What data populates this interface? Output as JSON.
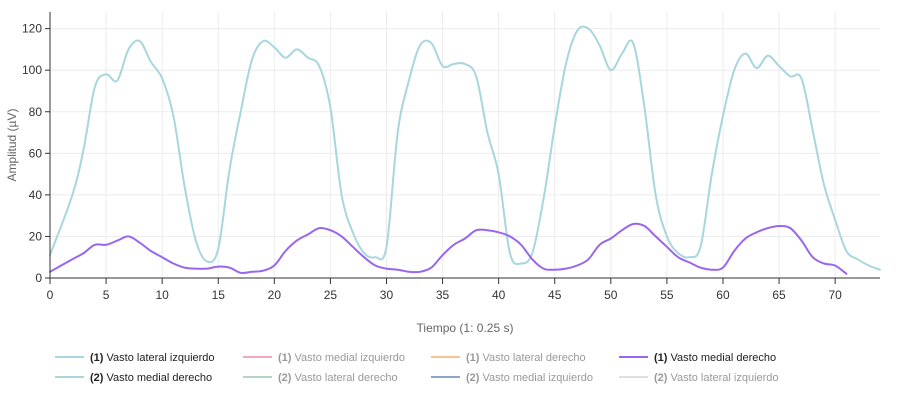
{
  "chart_data": {
    "type": "line",
    "title": "",
    "xlabel": "Tiempo (1: 0.25 s)",
    "ylabel": "Amplitud (µV)",
    "xlim": [
      0,
      74
    ],
    "ylim": [
      0,
      128
    ],
    "xticks": [
      0,
      5,
      10,
      15,
      20,
      25,
      30,
      35,
      40,
      45,
      50,
      55,
      60,
      65,
      70
    ],
    "yticks": [
      0,
      20,
      40,
      60,
      80,
      100,
      120
    ],
    "grid": true,
    "legend_position": "bottom",
    "series": [
      {
        "name": "Vasto lateral izquierdo",
        "prefix": "(1)",
        "color": "#a8d6de",
        "visible": true,
        "x": [
          0,
          2,
          3,
          4,
          5,
          6,
          7,
          8,
          9,
          10,
          11,
          12,
          13,
          14,
          15,
          16,
          17,
          18,
          19,
          20,
          21,
          22,
          23,
          24,
          25,
          26,
          27,
          28,
          29,
          30,
          31,
          32,
          33,
          34,
          35,
          36,
          37,
          38,
          39,
          40,
          41,
          42,
          43,
          44,
          45,
          46,
          47,
          48,
          49,
          50,
          51,
          52,
          53,
          54,
          55,
          56,
          57,
          58,
          59,
          60,
          61,
          62,
          63,
          64,
          65,
          66,
          67,
          68,
          69,
          70,
          71,
          72,
          73,
          74
        ],
        "y": [
          11,
          40,
          62,
          92,
          98,
          95,
          110,
          114,
          104,
          96,
          78,
          44,
          18,
          8,
          14,
          52,
          80,
          105,
          114,
          111,
          106,
          110,
          106,
          102,
          82,
          40,
          22,
          12,
          10,
          15,
          70,
          95,
          112,
          113,
          102,
          103,
          103,
          97,
          70,
          50,
          12,
          7,
          12,
          38,
          73,
          103,
          119,
          120,
          112,
          100,
          108,
          113,
          82,
          40,
          20,
          12,
          10,
          15,
          50,
          78,
          100,
          108,
          101,
          107,
          102,
          97,
          96,
          71,
          45,
          28,
          13,
          9,
          6,
          4
        ]
      },
      {
        "name": "Vasto medial izquierdo",
        "prefix": "(1)",
        "color": "#f4a7c0",
        "visible": false,
        "x": [],
        "y": []
      },
      {
        "name": "Vasto lateral derecho",
        "prefix": "(1)",
        "color": "#f7c48f",
        "visible": false,
        "x": [],
        "y": []
      },
      {
        "name": "Vasto medial derecho",
        "prefix": "(1)",
        "color": "#9966ee",
        "visible": true,
        "x": [
          0,
          1,
          2,
          3,
          4,
          5,
          6,
          7,
          8,
          9,
          10,
          11,
          12,
          13,
          14,
          15,
          16,
          17,
          18,
          19,
          20,
          21,
          22,
          23,
          24,
          25,
          26,
          27,
          28,
          29,
          30,
          31,
          32,
          33,
          34,
          35,
          36,
          37,
          38,
          39,
          40,
          41,
          42,
          43,
          44,
          45,
          46,
          47,
          48,
          49,
          50,
          51,
          52,
          53,
          54,
          55,
          56,
          57,
          58,
          59,
          60,
          61,
          62,
          63,
          64,
          65,
          66,
          67,
          68,
          69,
          70,
          71
        ],
        "y": [
          3,
          6,
          9,
          12,
          16,
          16,
          18,
          20,
          17,
          13,
          10,
          7,
          5,
          4.5,
          4.5,
          5.5,
          5,
          2.5,
          3,
          3.5,
          6,
          13,
          18,
          21,
          24,
          23,
          20,
          15,
          10,
          6,
          4.5,
          4,
          3,
          3,
          5,
          11,
          16,
          19,
          23,
          23,
          22,
          20,
          16,
          9,
          4.5,
          4,
          4.5,
          6,
          9,
          16,
          19,
          23,
          26,
          25,
          20,
          15,
          10,
          7.5,
          5,
          4,
          5,
          13,
          19,
          22,
          24,
          25,
          24,
          18,
          10,
          7,
          6,
          2
        ]
      },
      {
        "name": "Vasto medial derecho",
        "prefix": "(2)",
        "color": "#a8d6de",
        "visible": true,
        "x": [],
        "y": []
      },
      {
        "name": "Vasto lateral derecho",
        "prefix": "(2)",
        "color": "#b5d4c3",
        "visible": false,
        "x": [],
        "y": []
      },
      {
        "name": "Vasto medial izquierdo",
        "prefix": "(2)",
        "color": "#8ea4c8",
        "visible": false,
        "x": [],
        "y": []
      },
      {
        "name": "Vasto lateral izquierdo",
        "prefix": "(2)",
        "color": "#e0e0e0",
        "visible": false,
        "x": [],
        "y": []
      }
    ]
  }
}
